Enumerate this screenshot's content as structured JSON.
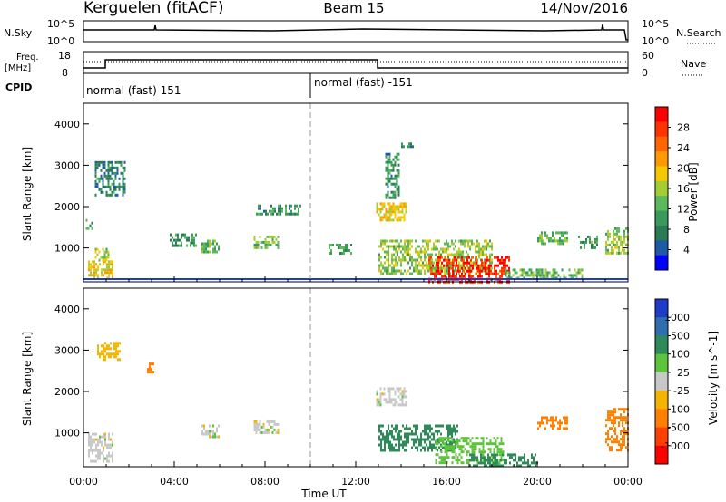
{
  "header": {
    "site": "Kerguelen (fitACF)",
    "beam": "Beam 15",
    "date": "14/Nov/2016"
  },
  "sky_panel": {
    "left_label": "N.Sky",
    "right_label": "N.Search",
    "left_ticks": [
      "10^5",
      "10^0"
    ],
    "right_ticks": [
      "10^5",
      "10^0"
    ]
  },
  "freq_panel": {
    "left_label_1": "Freq.",
    "left_label_2": "[MHz]",
    "left_ticks": [
      "18",
      "8"
    ],
    "right_label": "Nave",
    "right_ticks": [
      "60",
      "0"
    ]
  },
  "cpid": {
    "label": "CPID",
    "segments": [
      {
        "start_h": 0,
        "text": "normal (fast) 151"
      },
      {
        "start_h": 10,
        "text": "normal (fast) -151"
      }
    ]
  },
  "axes": {
    "ylabel": "Slant Range [km]",
    "yticks": [
      "4000",
      "3000",
      "2000",
      "1000"
    ],
    "xticks": [
      "00:00",
      "04:00",
      "08:00",
      "12:00",
      "16:00",
      "20:00",
      "00:00"
    ],
    "xlabel": "Time UT"
  },
  "power_bar": {
    "label": "Power [dB]",
    "ticks": [
      "28",
      "24",
      "20",
      "16",
      "12",
      "8",
      "4"
    ],
    "colors": [
      "#ff0000",
      "#ff3300",
      "#ff6600",
      "#ff9900",
      "#f5c800",
      "#a6cc33",
      "#5cb85c",
      "#3a9a5a",
      "#2a7a55",
      "#1e5aa8",
      "#0000ff"
    ]
  },
  "velocity_bar": {
    "label": "Velocity [m s^-1]",
    "ticks": [
      "1000",
      "500",
      "100",
      "25",
      "-25",
      "-100",
      "-500",
      "-1000"
    ],
    "colors": [
      "#1e3cc8",
      "#2f6fb0",
      "#2e8a58",
      "#5cc33a",
      "#c8c8c8",
      "#f5b400",
      "#ff8000",
      "#ff4000",
      "#ff0000"
    ]
  },
  "chart_data": {
    "type": "heatmap",
    "x_range_hours": [
      0,
      24
    ],
    "y_range_km": [
      180,
      4500
    ],
    "cpid_change_hour": 10,
    "power_patches": [
      {
        "t0": 0.2,
        "t1": 1.3,
        "r0": 300,
        "r1": 700,
        "v": 18
      },
      {
        "t0": 0.5,
        "t1": 1.1,
        "r0": 700,
        "r1": 1000,
        "v": 14
      },
      {
        "t0": 0.5,
        "t1": 1.8,
        "r0": 2300,
        "r1": 3100,
        "v": 7
      },
      {
        "t0": 0.1,
        "t1": 0.4,
        "r0": 1400,
        "r1": 1700,
        "v": 10
      },
      {
        "t0": 3.8,
        "t1": 5.0,
        "r0": 1050,
        "r1": 1350,
        "v": 8
      },
      {
        "t0": 5.2,
        "t1": 6.0,
        "r0": 900,
        "r1": 1200,
        "v": 12
      },
      {
        "t0": 7.5,
        "t1": 8.6,
        "r0": 1000,
        "r1": 1300,
        "v": 12
      },
      {
        "t0": 7.6,
        "t1": 9.6,
        "r0": 1850,
        "r1": 2050,
        "v": 8
      },
      {
        "t0": 10.8,
        "t1": 11.8,
        "r0": 850,
        "r1": 1100,
        "v": 10
      },
      {
        "t0": 12.9,
        "t1": 14.2,
        "r0": 1700,
        "r1": 2100,
        "v": 18
      },
      {
        "t0": 13.3,
        "t1": 13.9,
        "r0": 2200,
        "r1": 3300,
        "v": 8
      },
      {
        "t0": 14.0,
        "t1": 14.5,
        "r0": 3450,
        "r1": 3550,
        "v": 6
      },
      {
        "t0": 13.0,
        "t1": 18.0,
        "r0": 400,
        "r1": 1200,
        "v": 14
      },
      {
        "t0": 15.2,
        "t1": 18.8,
        "r0": 200,
        "r1": 800,
        "v": 28
      },
      {
        "t0": 18.5,
        "t1": 22.0,
        "r0": 300,
        "r1": 500,
        "v": 12
      },
      {
        "t0": 20.0,
        "t1": 21.3,
        "r0": 1100,
        "r1": 1400,
        "v": 12
      },
      {
        "t0": 21.8,
        "t1": 22.6,
        "r0": 1000,
        "r1": 1300,
        "v": 10
      },
      {
        "t0": 23.0,
        "t1": 24.0,
        "r0": 900,
        "r1": 1500,
        "v": 14
      }
    ],
    "velocity_patches": [
      {
        "t0": 0.2,
        "t1": 1.3,
        "r0": 300,
        "r1": 1000,
        "v": 0
      },
      {
        "t0": 0.6,
        "t1": 1.6,
        "r0": 2800,
        "r1": 3200,
        "v": -60
      },
      {
        "t0": 2.8,
        "t1": 3.1,
        "r0": 2400,
        "r1": 2700,
        "v": -300
      },
      {
        "t0": 5.2,
        "t1": 6.0,
        "r0": 900,
        "r1": 1200,
        "v": 0
      },
      {
        "t0": 7.5,
        "t1": 8.6,
        "r0": 1000,
        "r1": 1300,
        "v": 0
      },
      {
        "t0": 12.9,
        "t1": 14.2,
        "r0": 1700,
        "r1": 2100,
        "v": 0
      },
      {
        "t0": 13.0,
        "t1": 16.5,
        "r0": 600,
        "r1": 1200,
        "v": 150
      },
      {
        "t0": 15.5,
        "t1": 18.5,
        "r0": 300,
        "r1": 900,
        "v": 60
      },
      {
        "t0": 17.0,
        "t1": 20.0,
        "r0": 200,
        "r1": 500,
        "v": 150
      },
      {
        "t0": 20.0,
        "t1": 21.3,
        "r0": 1100,
        "r1": 1400,
        "v": -300
      },
      {
        "t0": 23.0,
        "t1": 24.0,
        "r0": 600,
        "r1": 1600,
        "v": -400
      }
    ]
  }
}
